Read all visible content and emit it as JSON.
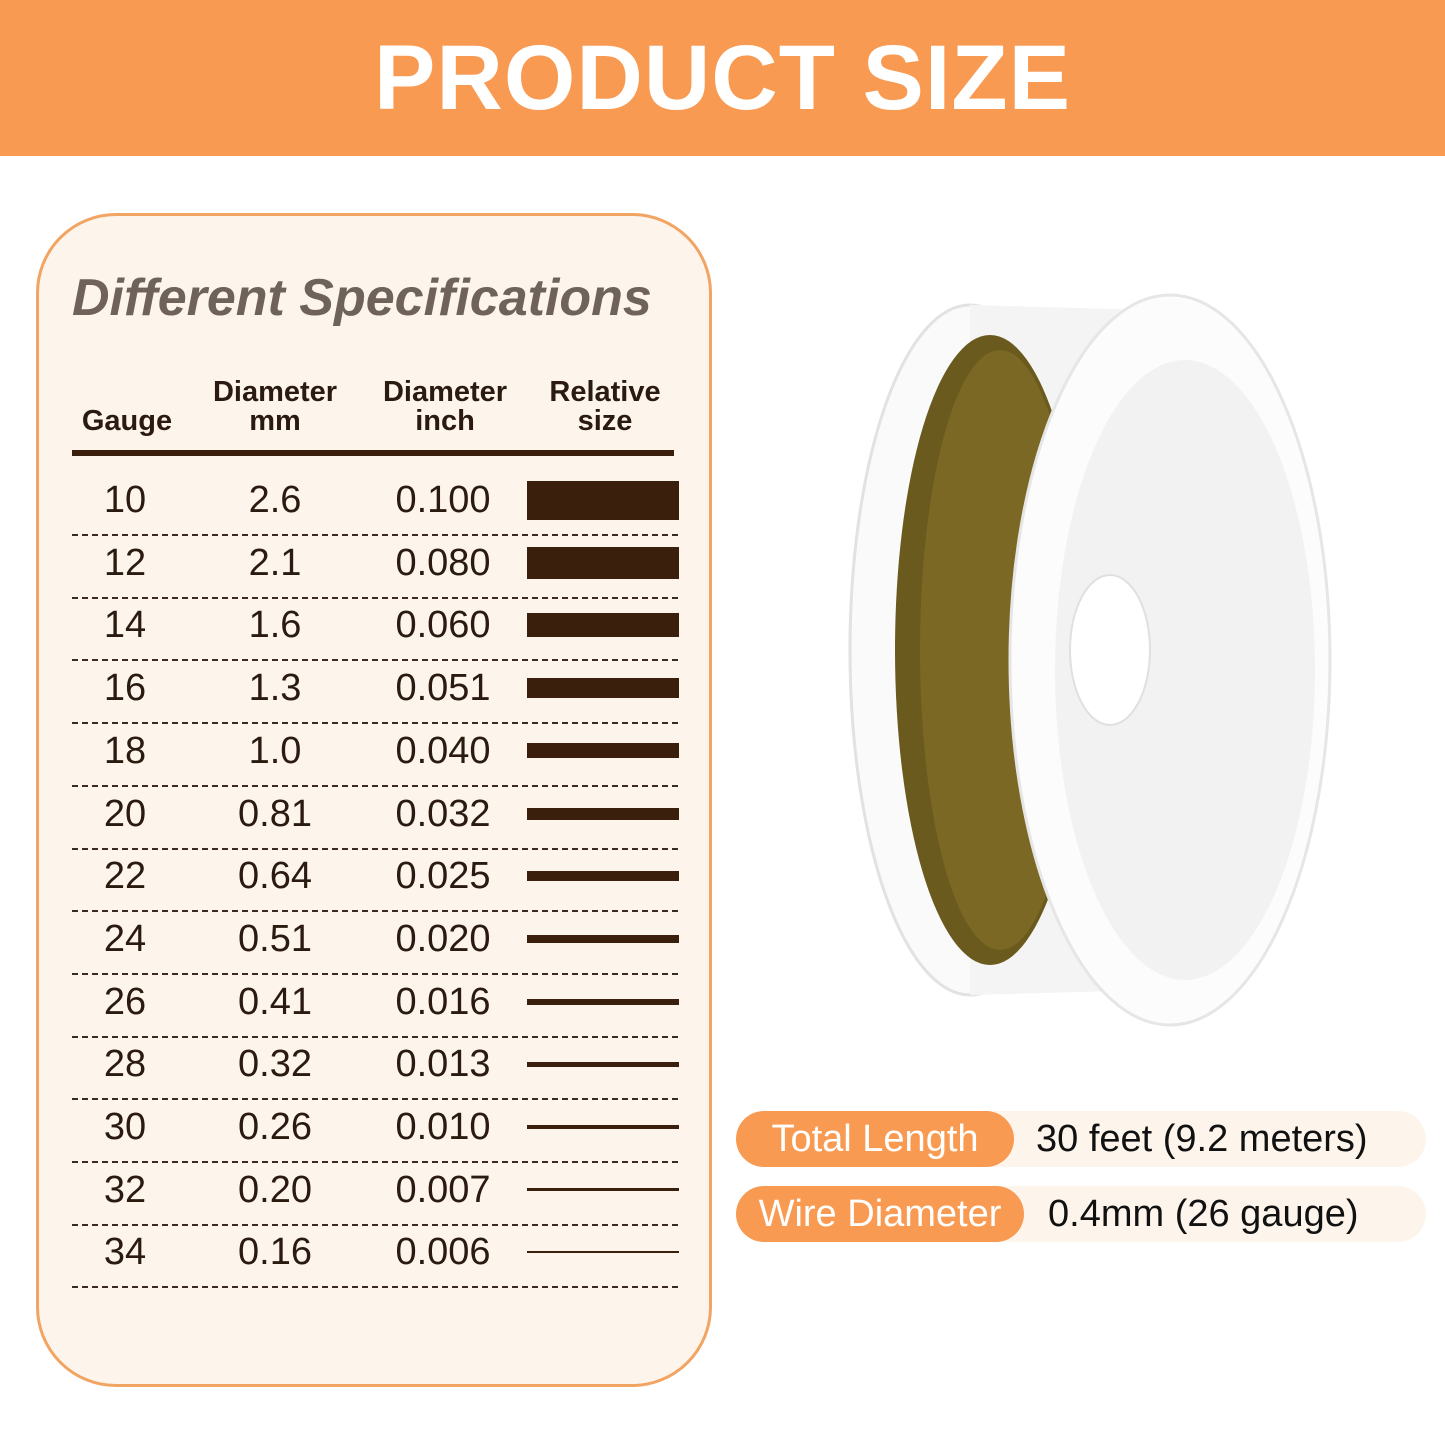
{
  "banner": {
    "title": "PRODUCT SIZE"
  },
  "spec_card": {
    "title": "Different Specifications",
    "headers": [
      {
        "l1": "",
        "l2": "Gauge"
      },
      {
        "l1": "Diameter",
        "l2": "mm"
      },
      {
        "l1": "Diameter",
        "l2": "inch"
      },
      {
        "l1": "Relative",
        "l2": "size"
      }
    ],
    "rows": [
      {
        "gauge": "10",
        "mm": "2.6",
        "inch": "0.100"
      },
      {
        "gauge": "12",
        "mm": "2.1",
        "inch": "0.080"
      },
      {
        "gauge": "14",
        "mm": "1.6",
        "inch": "0.060"
      },
      {
        "gauge": "16",
        "mm": "1.3",
        "inch": "0.051"
      },
      {
        "gauge": "18",
        "mm": "1.0",
        "inch": "0.040"
      },
      {
        "gauge": "20",
        "mm": "0.81",
        "inch": "0.032"
      },
      {
        "gauge": "22",
        "mm": "0.64",
        "inch": "0.025"
      },
      {
        "gauge": "24",
        "mm": "0.51",
        "inch": "0.020"
      },
      {
        "gauge": "26",
        "mm": "0.41",
        "inch": "0.016"
      },
      {
        "gauge": "28",
        "mm": "0.32",
        "inch": "0.013"
      },
      {
        "gauge": "30",
        "mm": "0.26",
        "inch": "0.010"
      },
      {
        "gauge": "32",
        "mm": "0.20",
        "inch": "0.007"
      },
      {
        "gauge": "34",
        "mm": "0.16",
        "inch": "0.006"
      }
    ]
  },
  "specs": [
    {
      "label": "Total Length",
      "value": "30 feet (9.2 meters)"
    },
    {
      "label": "Wire Diameter",
      "value": "0.4mm (26 gauge)"
    }
  ],
  "colors": {
    "accent": "#f89a52",
    "bar": "#3a1f0c",
    "card_bg": "#fdf5ec",
    "wire": "#6b5a1e"
  }
}
